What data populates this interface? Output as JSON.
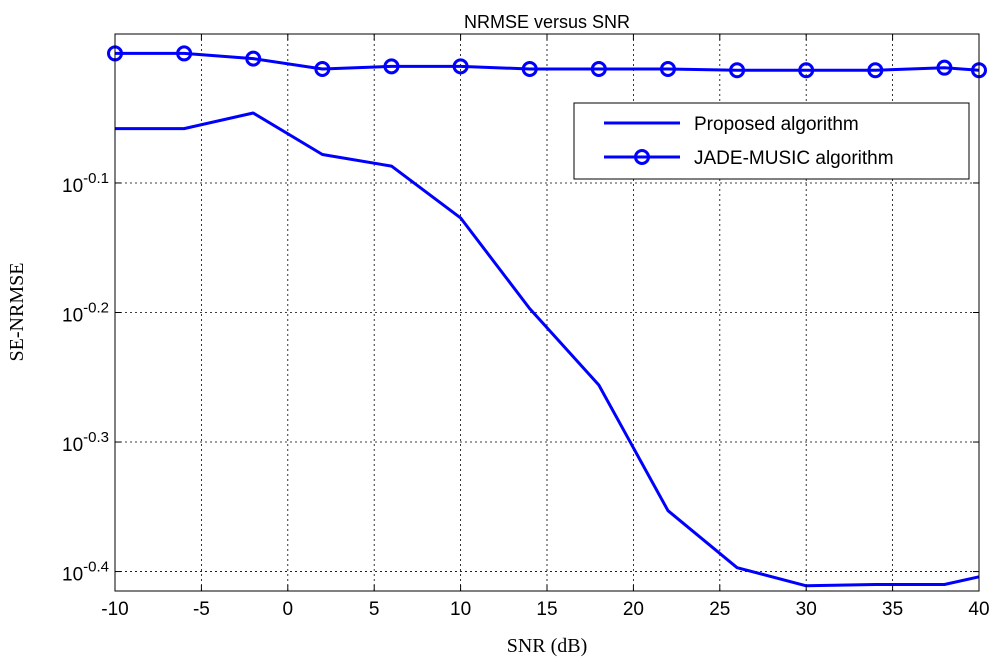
{
  "chart_data": {
    "type": "line",
    "title": "NRMSE versus SNR",
    "xlabel": "SNR (dB)",
    "ylabel": "SE-NRMSE",
    "y_scale": "log",
    "xlim": [
      -10,
      40
    ],
    "ylim_log10": [
      -0.415,
      0.015
    ],
    "grid": true,
    "legend_position": "top-right",
    "x_ticks": [
      -10,
      -5,
      0,
      5,
      10,
      15,
      20,
      25,
      30,
      35,
      40
    ],
    "x_tick_labels": [
      "-10",
      "-5",
      "0",
      "5",
      "10",
      "15",
      "20",
      "25",
      "30",
      "35",
      "40"
    ],
    "y_ticks_log10": [
      -0.1,
      -0.2,
      -0.3,
      -0.4
    ],
    "y_tick_labels": [
      {
        "base": "10",
        "exp": "-0.1"
      },
      {
        "base": "10",
        "exp": "-0.2"
      },
      {
        "base": "10",
        "exp": "-0.3"
      },
      {
        "base": "10",
        "exp": "-0.4"
      }
    ],
    "line_color": "#0000ff",
    "series": [
      {
        "name": "Proposed algorithm",
        "marker": "none",
        "x": [
          -10,
          -6,
          -2,
          2,
          6,
          10,
          14,
          18,
          22,
          26,
          30,
          34,
          38,
          40
        ],
        "log10_y": [
          -0.058,
          -0.058,
          -0.046,
          -0.078,
          -0.087,
          -0.127,
          -0.197,
          -0.256,
          -0.353,
          -0.397,
          -0.411,
          -0.41,
          -0.41,
          -0.404
        ]
      },
      {
        "name": "JADE-MUSIC algorithm",
        "marker": "circle",
        "x": [
          -10,
          -6,
          -2,
          2,
          6,
          10,
          14,
          18,
          22,
          26,
          30,
          34,
          38,
          40
        ],
        "log10_y": [
          0.0,
          0.0,
          -0.004,
          -0.012,
          -0.01,
          -0.01,
          -0.012,
          -0.012,
          -0.012,
          -0.013,
          -0.013,
          -0.013,
          -0.011,
          -0.013
        ]
      }
    ]
  }
}
